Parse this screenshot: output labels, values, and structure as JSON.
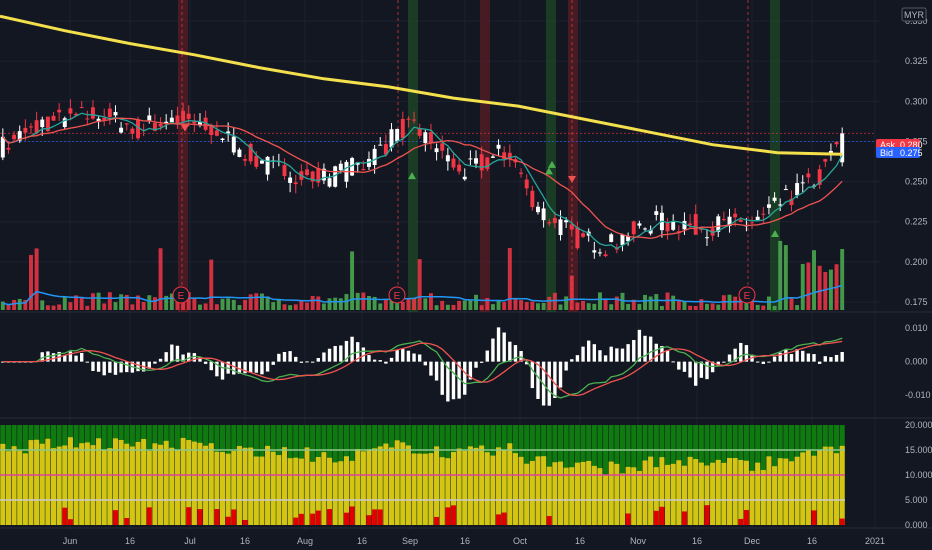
{
  "currency": "MYR",
  "quote": {
    "ask_label": "Ask",
    "ask_value": "0.280",
    "bid_label": "Bid",
    "bid_value": "0.275"
  },
  "earnings_marker": "E",
  "colors": {
    "background": "#131722",
    "grid": "#1e2230",
    "up": "#ffffff",
    "down": "#f23645",
    "ma200": "#f4e04d",
    "ma_fast": "#26a69a",
    "ma_slow": "#ef5350",
    "vol_up": "#4caf50",
    "vol_down": "#f23645",
    "vol_ma": "#2196f3",
    "buy_arrow": "#4caf50",
    "sell_arrow": "#ef5350",
    "macd_line": "#4caf50",
    "signal_line": "#ef5350",
    "hist": "#ffffff",
    "osc_green": "#0f7a0f",
    "osc_yellow": "#d4c414",
    "osc_red": "#e00000",
    "osc_line_upper": "#8cc88c",
    "osc_line_mid": "#e040a0",
    "osc_line_lower": "#cccccc"
  },
  "chart_data": [
    {
      "type": "candlestick",
      "panel": "price",
      "y_ticks": [
        "0.350",
        "0.325",
        "0.300",
        "0.275",
        "0.250",
        "0.225",
        "0.200",
        "0.175"
      ],
      "ylim": [
        0.17,
        0.36
      ],
      "x_ticks": [
        "Jun",
        "16",
        "Jul",
        "16",
        "Aug",
        "16",
        "Sep",
        "16",
        "Oct",
        "16",
        "Nov",
        "16",
        "Dec",
        "16",
        "2021"
      ],
      "ma200": [
        0.353,
        0.344,
        0.336,
        0.329,
        0.321,
        0.314,
        0.309,
        0.302,
        0.297,
        0.289,
        0.281,
        0.273,
        0.268,
        0.267
      ],
      "last_close": 0.28,
      "earnings_positions": [
        "Jul",
        "Sep",
        "Dec"
      ]
    },
    {
      "type": "bar",
      "panel": "volume",
      "series": [
        {
          "name": "volume",
          "values": []
        }
      ]
    },
    {
      "type": "line",
      "panel": "macd",
      "y_ticks": [
        "0.010",
        "0.000",
        "-0.010"
      ],
      "ylim": [
        -0.015,
        0.013
      ]
    },
    {
      "type": "bar",
      "panel": "oscillator",
      "y_ticks": [
        "20.000",
        "15.000",
        "10.000",
        "5.000",
        "0.000"
      ],
      "ylim": [
        0,
        20
      ],
      "reference_lines": [
        15,
        10,
        5
      ]
    }
  ]
}
